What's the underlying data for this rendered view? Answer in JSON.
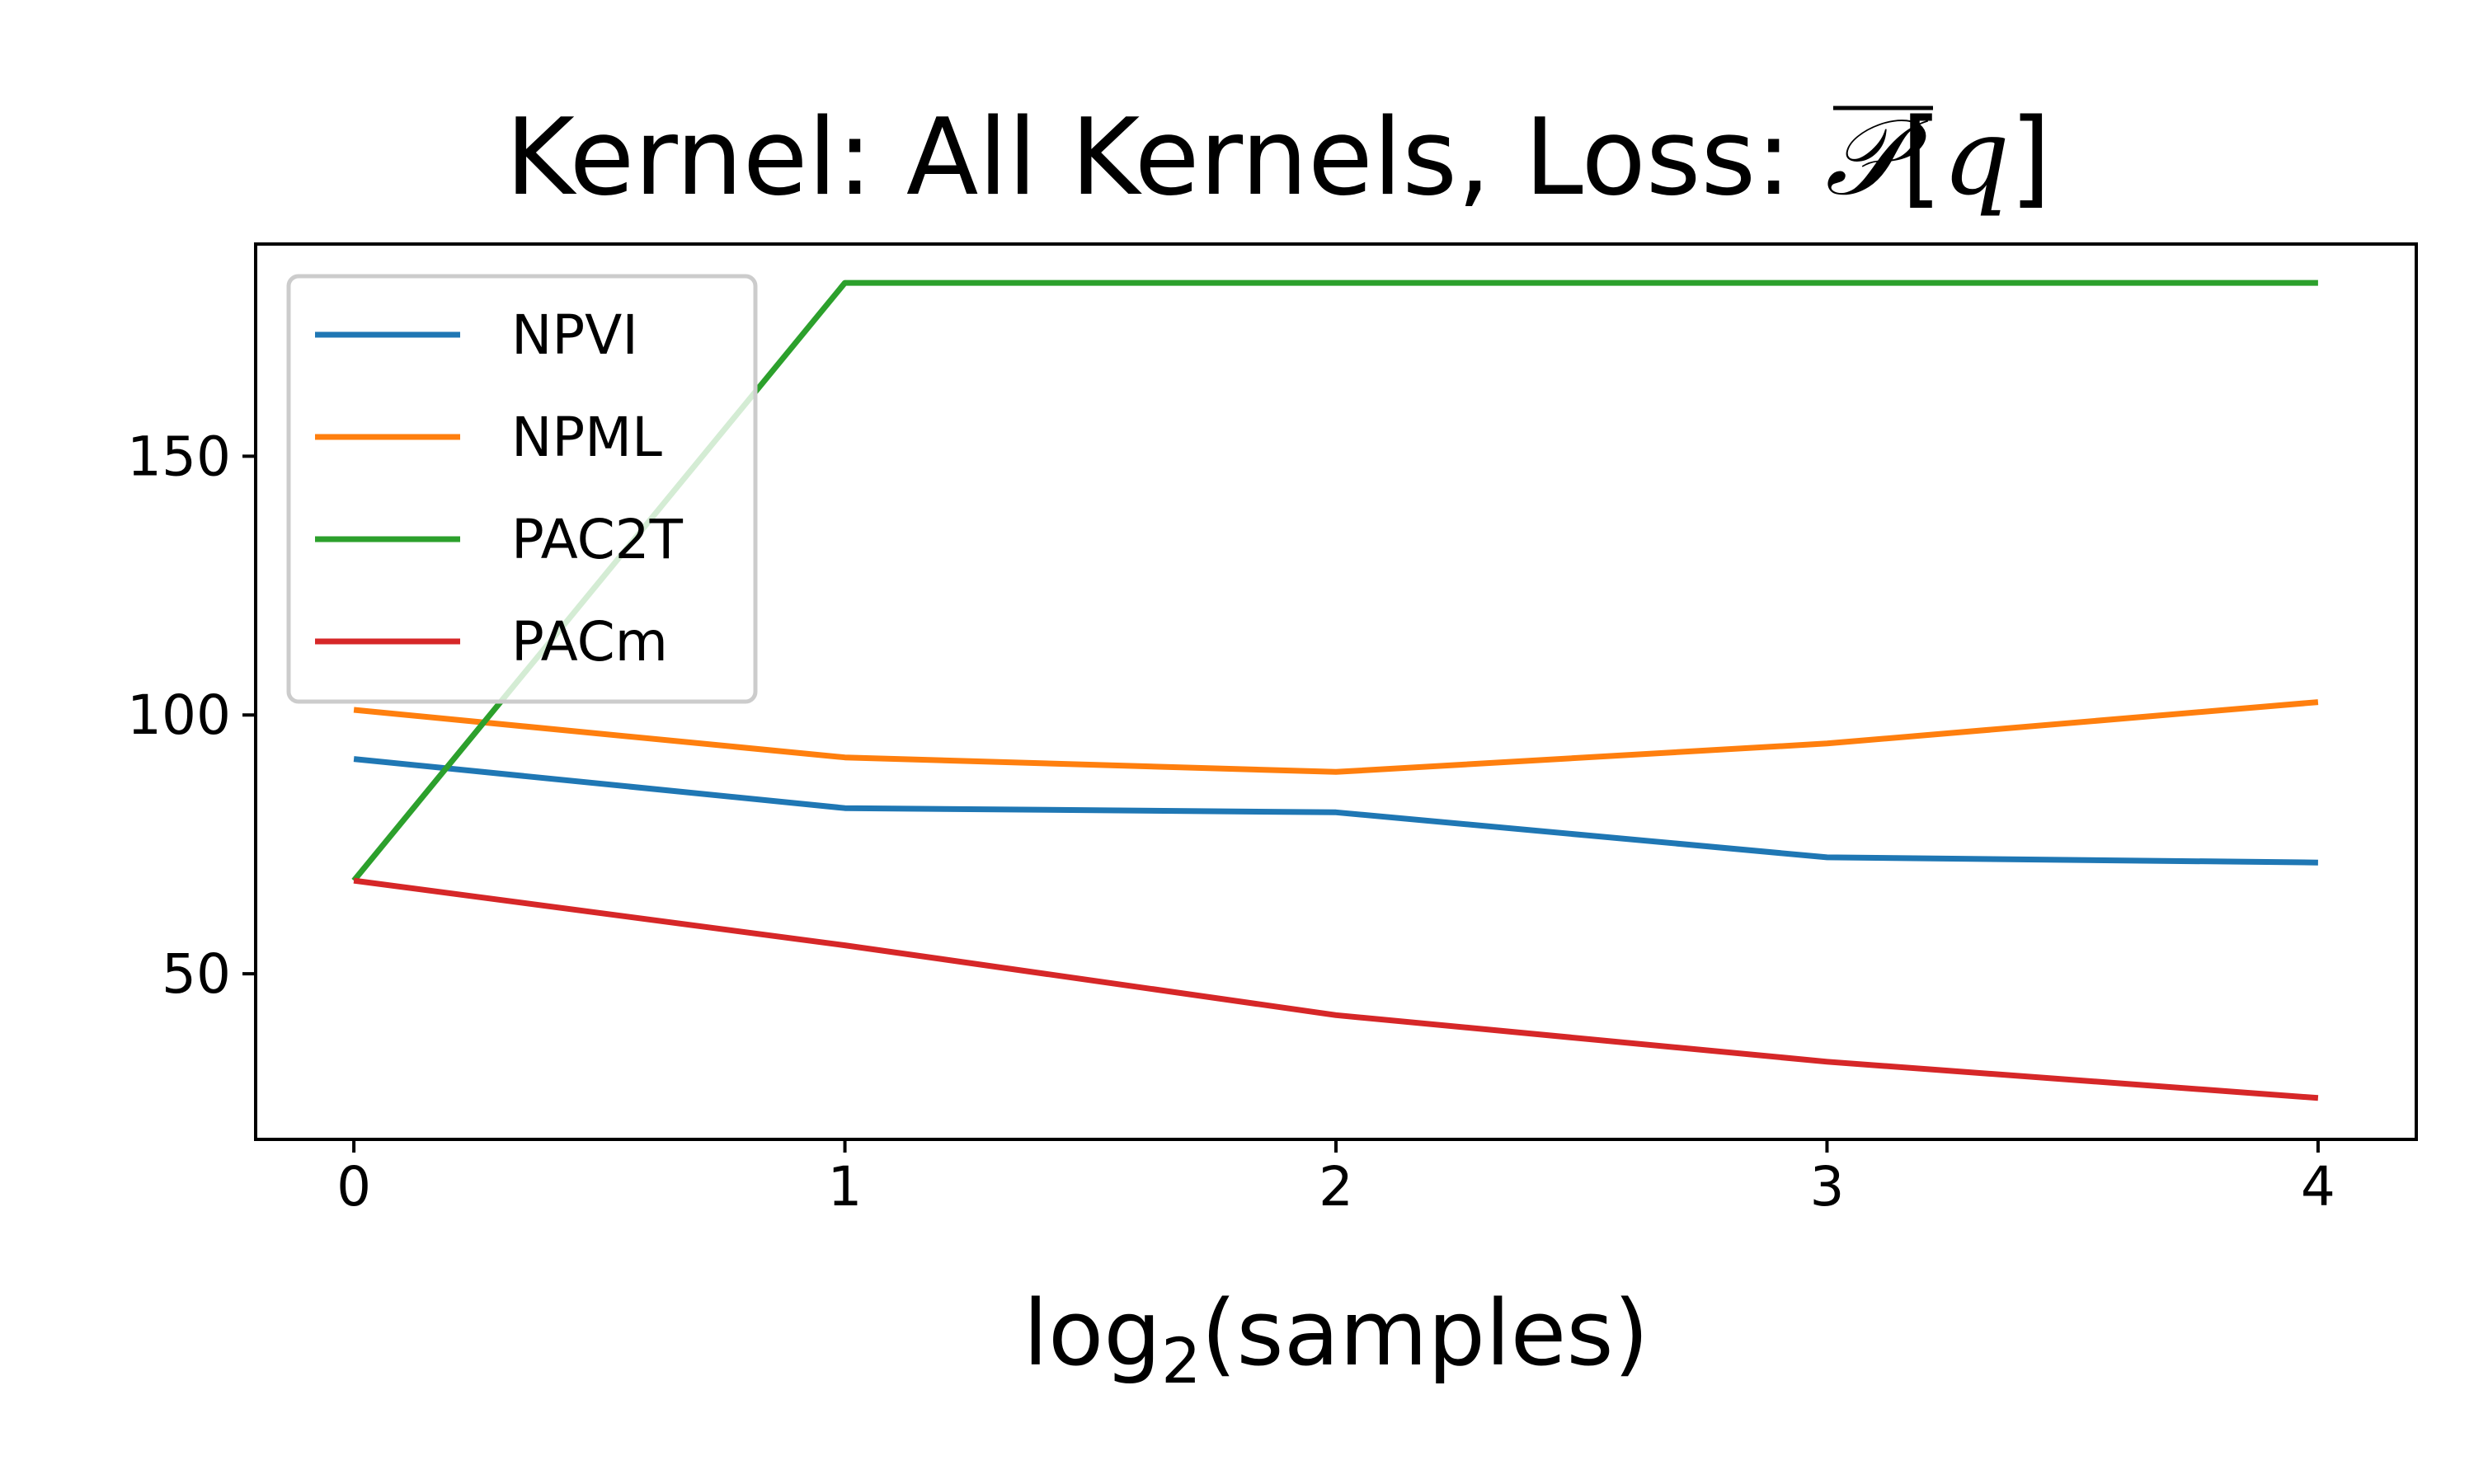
{
  "chart_data": {
    "type": "line",
    "title": {
      "prefix": "Kernel: All Kernels, Loss: ",
      "math_symbol": "𝒫",
      "math_open": "[",
      "math_var": "q",
      "math_close": "]"
    },
    "xlabel": {
      "base": "log",
      "subscript": "2",
      "rest": "(samples)"
    },
    "ylabel": "",
    "x": [
      0,
      1,
      2,
      3,
      4
    ],
    "xticks": [
      "0",
      "1",
      "2",
      "3",
      "4"
    ],
    "yticks": [
      50,
      100,
      150
    ],
    "xlim": [
      -0.2,
      4.2
    ],
    "ylim": [
      18,
      191
    ],
    "grid": false,
    "legend_position": "upper-left",
    "series": [
      {
        "name": "NPVI",
        "color": "#1f77b4",
        "values": [
          91.5,
          82,
          81.2,
          72.5,
          71.5
        ]
      },
      {
        "name": "NPML",
        "color": "#ff7f0e",
        "values": [
          101,
          91.8,
          89,
          94.5,
          102.5
        ]
      },
      {
        "name": "PAC2T",
        "color": "#2ca02c",
        "values": [
          68,
          183.5,
          183.5,
          183.5,
          183.5
        ]
      },
      {
        "name": "PACm",
        "color": "#d62728",
        "values": [
          68,
          55.5,
          42,
          33,
          26
        ]
      }
    ]
  }
}
